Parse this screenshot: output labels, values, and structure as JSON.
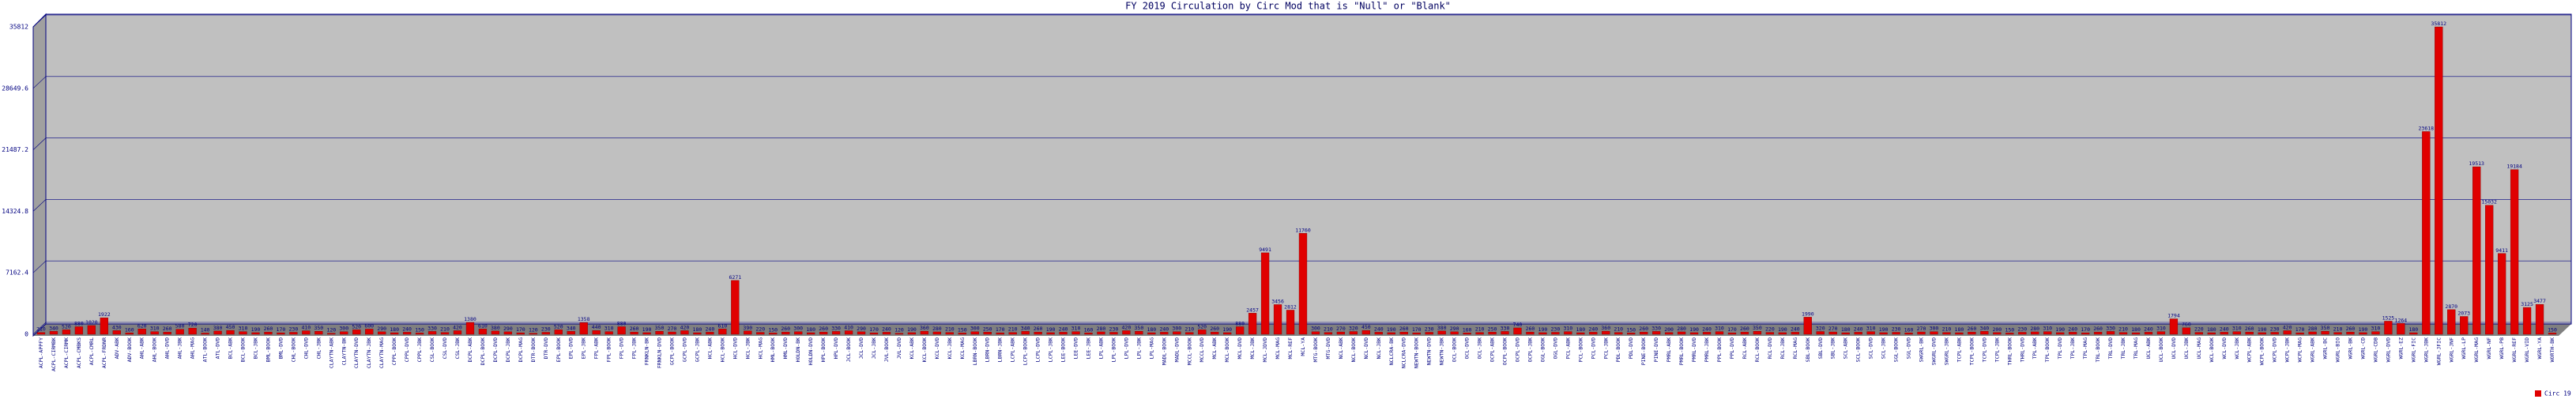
{
  "chart_data": {
    "type": "bar",
    "title": "FY 2019 Circulation by Circ Mod that is \"Null\" or \"Blank\"",
    "categories": [
      "ACPL-APPFY",
      "ACPL-CIRMBK",
      "ACPL-CIRMK",
      "ACPL-CMBKS",
      "ACPL-CMRL",
      "ACPL-FRDNR",
      "ADV-ABK",
      "ADV-BOOK",
      "AHL-ABK",
      "AHL-BOOK",
      "AHL-DVD",
      "AHL-JBK",
      "AHL-MAG",
      "ATL-BOOK",
      "ATL-DVD",
      "BCL-ABK",
      "BCL-BOOK",
      "BCL-JBK",
      "BML-BOOK",
      "BML-DVD",
      "CHL-BOOK",
      "CHL-DVD",
      "CHL-JBK",
      "CLAYTN-ABK",
      "CLAYTN-BK",
      "CLAYTN-DVD",
      "CLAYTN-JBK",
      "CLAYTN-MAG",
      "CPPL-BOOK",
      "CPPL-DVD",
      "CPPL-JBK",
      "CSL-BOOK",
      "CSL-DVD",
      "CSL-JBK",
      "DCPL-ABK",
      "DCPL-BOOK",
      "DCPL-DVD",
      "DCPL-JBK",
      "DCPL-MAG",
      "DTR-BOOK",
      "DTR-DVD",
      "EPL-BOOK",
      "EPL-DVD",
      "EPL-JBK",
      "FPL-ABK",
      "FPL-BOOK",
      "FPL-DVD",
      "FPL-JBK",
      "FRNKLN-BK",
      "FRNKLN-DVD",
      "GCPL-BOOK",
      "GCPL-DVD",
      "GCPL-JBK",
      "HCL-ABK",
      "HCL-BOOK",
      "HCL-DVD",
      "HCL-JBK",
      "HCL-MAG",
      "HML-BOOK",
      "HML-DVD",
      "HOLDN-BK",
      "HOLDN-DVD",
      "HPL-BOOK",
      "HPL-DVD",
      "JCL-BOOK",
      "JCL-DVD",
      "JCL-JBK",
      "JVL-BOOK",
      "JVL-DVD",
      "KCL-ABK",
      "KCL-BOOK",
      "KCL-DVD",
      "KCL-JBK",
      "KCL-MAG",
      "LBRN-BOOK",
      "LBRN-DVD",
      "LBRN-JBK",
      "LCPL-ABK",
      "LCPL-BOOK",
      "LCPL-DVD",
      "LCPL-JBK",
      "LEE-BOOK",
      "LEE-DVD",
      "LEE-JBK",
      "LPL-ABK",
      "LPL-BOOK",
      "LPL-DVD",
      "LPL-JBK",
      "LPL-MAG",
      "MADL-BOOK",
      "MADL-DVD",
      "MCCL-BOOK",
      "MCCL-DVD",
      "MCL-ABK",
      "MCL-BOOK",
      "MCL-DVD",
      "MCL-JBK",
      "MCL-JDVD",
      "MCL-MAG",
      "MCL-REF",
      "MCL-YA",
      "MTG-BOOK",
      "MTG-DVD",
      "NCL-ABK",
      "NCL-BOOK",
      "NCL-DVD",
      "NCL-JBK",
      "NCLCRA-BK",
      "NCLCRA-DVD",
      "NEWTN-BOOK",
      "NEWTN-DVD",
      "NEWTN-JBK",
      "OCL-BOOK",
      "OCL-DVD",
      "OCL-JBK",
      "OCPL-ABK",
      "OCPL-BOOK",
      "OCPL-DVD",
      "OCPL-JBK",
      "OGL-BOOK",
      "OGL-DVD",
      "PCL-ABK",
      "PCL-BOOK",
      "PCL-DVD",
      "PCL-JBK",
      "PDL-BOOK",
      "PDL-DVD",
      "PINE-BOOK",
      "PINE-DVD",
      "PMRL-ABK",
      "PMRL-BOOK",
      "PMRL-DVD",
      "PMRL-JBK",
      "PPL-BOOK",
      "PPL-DVD",
      "RCL-ABK",
      "RCL-BOOK",
      "RCL-DVD",
      "RCL-JBK",
      "RCL-MAG",
      "SBL-BOOK",
      "SBL-DVD",
      "SBL-JBK",
      "SCL-ABK",
      "SCL-BOOK",
      "SCL-DVD",
      "SCL-JBK",
      "SGL-BOOK",
      "SGL-DVD",
      "SWGRL-BK",
      "SWGRL-DVD",
      "SWGRL-JBK",
      "TCPL-ABK",
      "TCPL-BOOK",
      "TCPL-DVD",
      "TCPL-JBK",
      "THRL-BOOK",
      "THRL-DVD",
      "TPL-ABK",
      "TPL-BOOK",
      "TPL-DVD",
      "TPL-JBK",
      "TPL-MAG",
      "TRL-BOOK",
      "TRL-DVD",
      "TRL-JBK",
      "TRL-MAG",
      "UCL-ABK",
      "UCL-BOOK",
      "UCL-DVD",
      "UCL-JBK",
      "UCL-MAG",
      "WCL-BOOK",
      "WCL-DVD",
      "WCL-JBK",
      "WCPL-ABK",
      "WCPL-BOOK",
      "WCPL-DVD",
      "WCPL-JBK",
      "WCPL-MAG",
      "WGRL-ABK",
      "WGRL-BC",
      "WGRL-BIO",
      "WGRL-BK",
      "WGRL-CD",
      "WGRL-CDB",
      "WGRL-DVD",
      "WGRL-EZ",
      "WGRL-FIC",
      "WGRL-JBK",
      "WGRL-JFIC",
      "WGRL-JNF",
      "WGRL-LP",
      "WGRL-MAG",
      "WGRL-NF",
      "WGRL-PB",
      "WGRL-REF",
      "WGRL-VID",
      "WGRL-YA",
      "WORTH-BK"
    ],
    "series": [
      {
        "name": "Circ 19",
        "color": "#e00000",
        "values": [
          210,
          340,
          520,
          880,
          1020,
          1922,
          430,
          160,
          620,
          310,
          260,
          580,
          720,
          140,
          380,
          450,
          310,
          190,
          260,
          170,
          230,
          410,
          350,
          120,
          300,
          520,
          600,
          290,
          180,
          240,
          150,
          330,
          210,
          420,
          1380,
          610,
          380,
          290,
          170,
          120,
          230,
          520,
          340,
          1358,
          440,
          310,
          880,
          260,
          190,
          350,
          270,
          420,
          180,
          240,
          610,
          6271,
          390,
          220,
          150,
          260,
          300,
          180,
          260,
          330,
          410,
          290,
          170,
          240,
          120,
          190,
          360,
          280,
          210,
          150,
          300,
          250,
          170,
          210,
          340,
          260,
          190,
          240,
          310,
          160,
          280,
          230,
          420,
          350,
          180,
          240,
          300,
          210,
          520,
          260,
          190,
          880,
          2457,
          9491,
          3456,
          2812,
          11760,
          300,
          210,
          270,
          320,
          450,
          240,
          190,
          260,
          170,
          230,
          380,
          290,
          160,
          210,
          250,
          330,
          740,
          260,
          190,
          230,
          310,
          180,
          240,
          360,
          210,
          150,
          260,
          330,
          200,
          280,
          190,
          240,
          310,
          170,
          260,
          350,
          220,
          190,
          240,
          1990,
          320,
          270,
          180,
          240,
          310,
          190,
          230,
          160,
          270,
          300,
          210,
          180,
          260,
          340,
          200,
          150,
          230,
          280,
          310,
          190,
          240,
          170,
          260,
          330,
          210,
          180,
          240,
          310,
          1794,
          760,
          220,
          180,
          240,
          310,
          260,
          190,
          230,
          420,
          170,
          280,
          350,
          210,
          260,
          190,
          310,
          1525,
          1264,
          180,
          23618,
          35812,
          2870,
          2073,
          19513,
          15032,
          9411,
          19184,
          3125,
          3477,
          150
        ]
      }
    ],
    "ylim": [
      0,
      35812
    ],
    "yticks": [
      0,
      7162.4,
      14324.8,
      21487.2,
      28649.6,
      35812
    ],
    "grid": true,
    "legend": "bottom-right"
  }
}
